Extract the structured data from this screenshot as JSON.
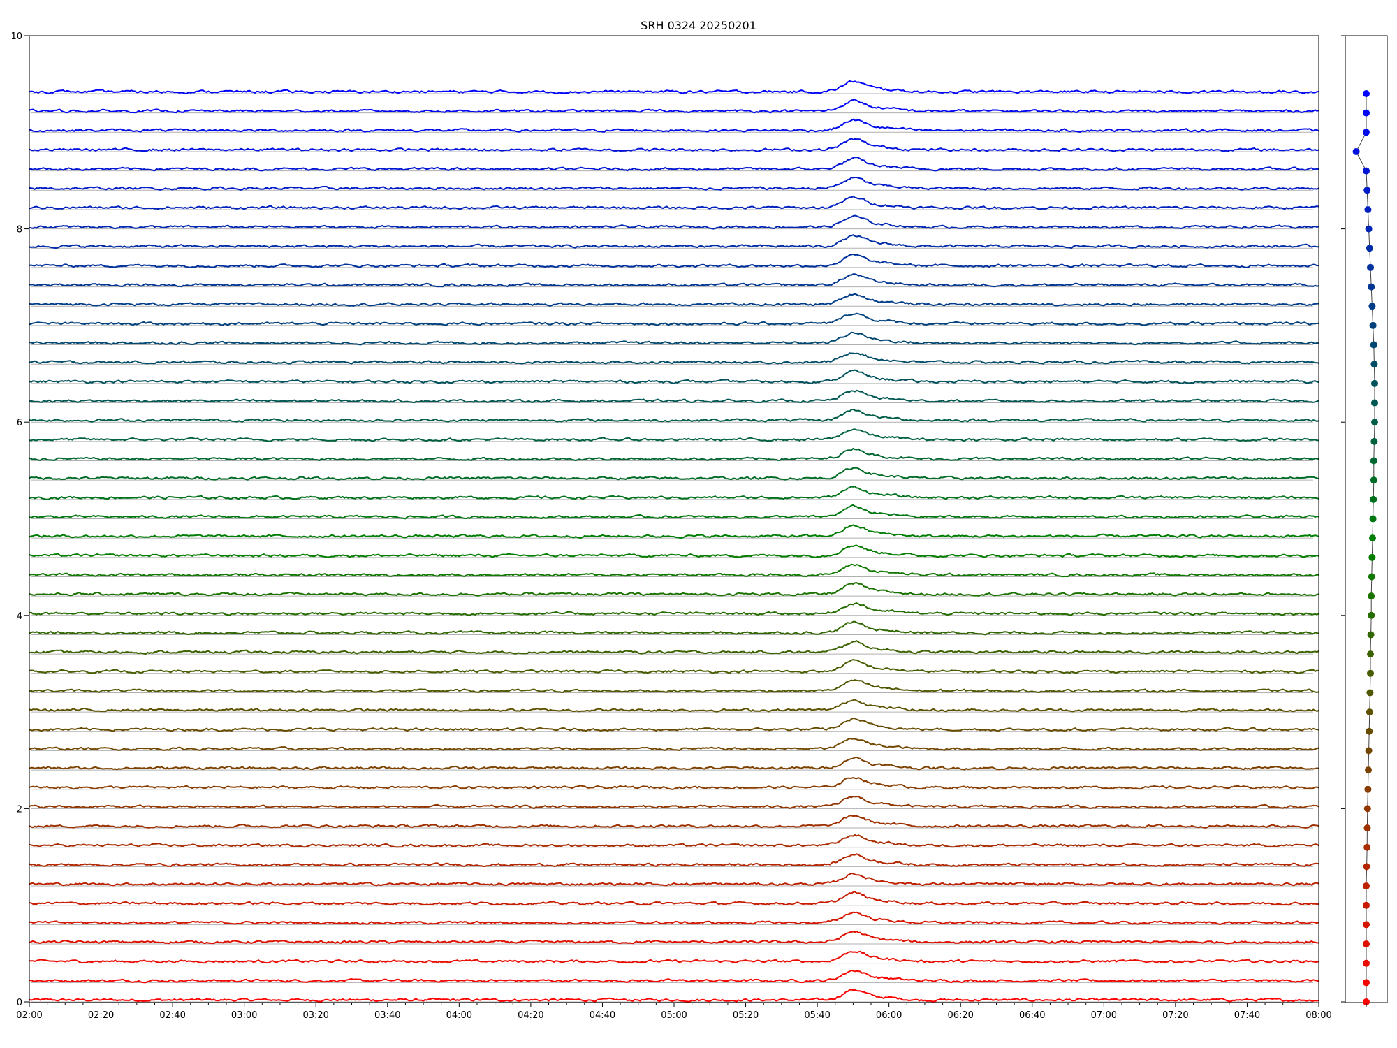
{
  "chart_data": {
    "type": "line",
    "title": "SRH 0324 20250201",
    "xlabel": "",
    "ylabel": "",
    "x_ticks": [
      "02:00",
      "02:20",
      "02:40",
      "03:00",
      "03:20",
      "03:40",
      "04:00",
      "04:20",
      "04:40",
      "05:00",
      "05:20",
      "05:40",
      "06:00",
      "06:20",
      "06:40",
      "07:00",
      "07:20",
      "07:40",
      "08:00"
    ],
    "x_range": [
      "02:00",
      "08:00"
    ],
    "y_ticks": [
      0,
      2,
      4,
      6,
      8,
      10
    ],
    "ylim": [
      0,
      10
    ],
    "grid": "horizontal lines at each trace baseline",
    "legend": "none",
    "num_traces": 48,
    "trace_spacing": 0.2,
    "color_start": "#ff0000",
    "color_mid": "#008000",
    "color_end": "#0000ff",
    "event_window": [
      "05:45",
      "05:55"
    ],
    "side_panel": {
      "type": "scatter",
      "y_range": [
        0,
        10
      ],
      "x_offsets": [
        0,
        0,
        0,
        0,
        0,
        0,
        0,
        0.05,
        0.1,
        0.12,
        0.15,
        0.2,
        0.25,
        0.3,
        0.35,
        0.4,
        0.45,
        0.5,
        0.5,
        0.55,
        0.6,
        0.6,
        0.65,
        0.7,
        0.75,
        0.8,
        0.85,
        0.9,
        0.9,
        0.95,
        1.0,
        1.0,
        1.0,
        0.95,
        0.9,
        0.8,
        0.7,
        0.6,
        0.5,
        0.4,
        0.3,
        0.2,
        0.1,
        0,
        -1.2,
        0,
        0,
        0
      ]
    }
  }
}
